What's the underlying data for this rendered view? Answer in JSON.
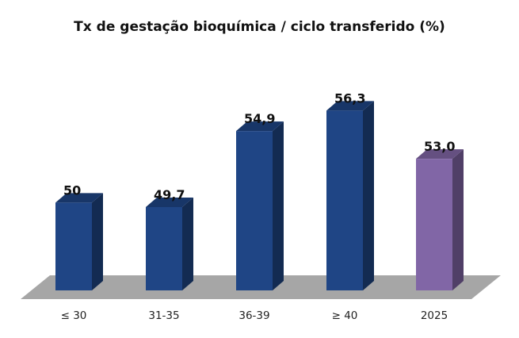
{
  "chart_data": {
    "type": "bar",
    "title": "Tx de gestação bioquímica / ciclo transferido (%)",
    "categories": [
      "≤ 30",
      "31-35",
      "36-39",
      "≥ 40",
      "2025"
    ],
    "value_labels": [
      "50",
      "49,7",
      "54,9",
      "56,3",
      "53,0"
    ],
    "values": [
      50,
      49.7,
      54.9,
      56.3,
      53.0
    ],
    "colors": [
      "#1f4585",
      "#1f4585",
      "#1f4585",
      "#1f4585",
      "#8166a6"
    ],
    "style": "3d",
    "floor_color": "#a6a6a6",
    "ylim": [
      44,
      58
    ],
    "grid": false,
    "legend": "none"
  }
}
